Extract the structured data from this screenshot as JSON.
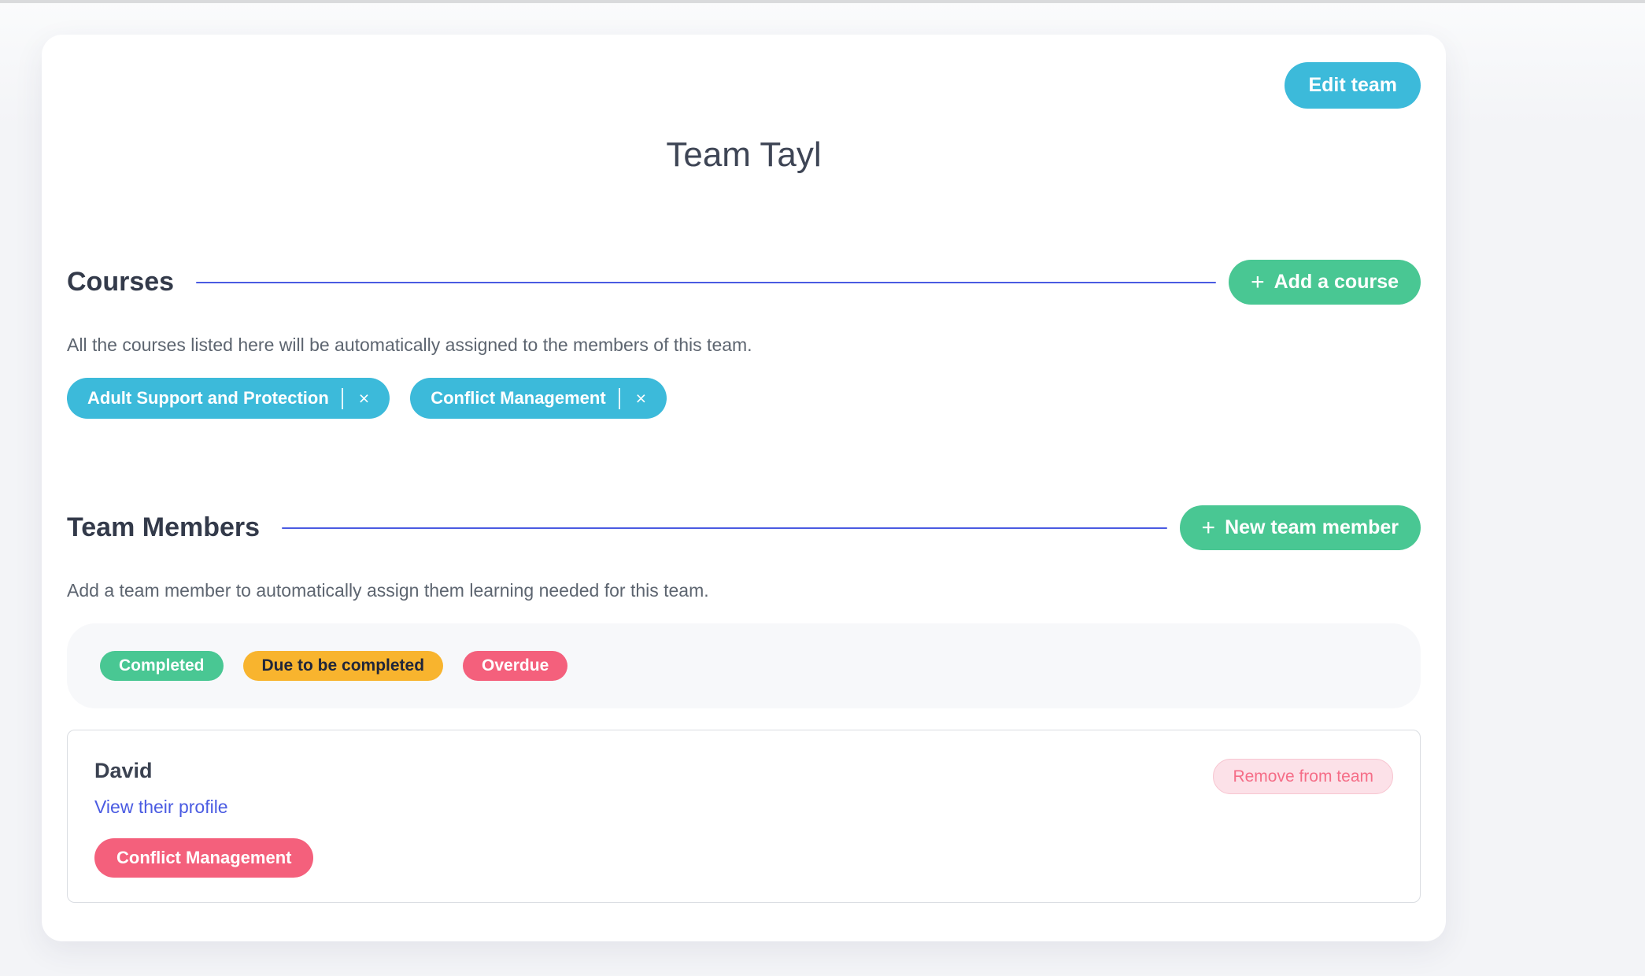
{
  "header": {
    "edit_team_label": "Edit team",
    "title": "Team Tayl"
  },
  "courses": {
    "heading": "Courses",
    "plus_icon": "+",
    "add_button_label": "Add a course",
    "description": "All the courses listed here will be automatically assigned to the members of this team.",
    "close_icon": "×",
    "items": [
      {
        "label": "Adult Support and Protection"
      },
      {
        "label": "Conflict Management"
      }
    ]
  },
  "members": {
    "heading": "Team Members",
    "plus_icon": "+",
    "add_button_label": "New team member",
    "description": "Add a team member to automatically assign them learning needed for this team.",
    "legend": [
      {
        "label": "Completed",
        "status": "completed",
        "color": "#49c793"
      },
      {
        "label": "Due to be completed",
        "status": "due",
        "color": "#f8b42e"
      },
      {
        "label": "Overdue",
        "status": "overdue",
        "color": "#f4607c"
      }
    ],
    "member": {
      "name": "David",
      "profile_link_label": "View their profile",
      "courses": [
        {
          "label": "Conflict Management",
          "status": "overdue",
          "color": "#f4607c"
        }
      ],
      "remove_label": "Remove from team"
    }
  },
  "colors": {
    "accent_cyan": "#3cbada",
    "accent_green": "#49c793",
    "accent_indigo": "#4a5be2",
    "page_background": "#f3f4f7",
    "remove_button_bg": "#fce1e8",
    "remove_button_text": "#f56d87"
  }
}
